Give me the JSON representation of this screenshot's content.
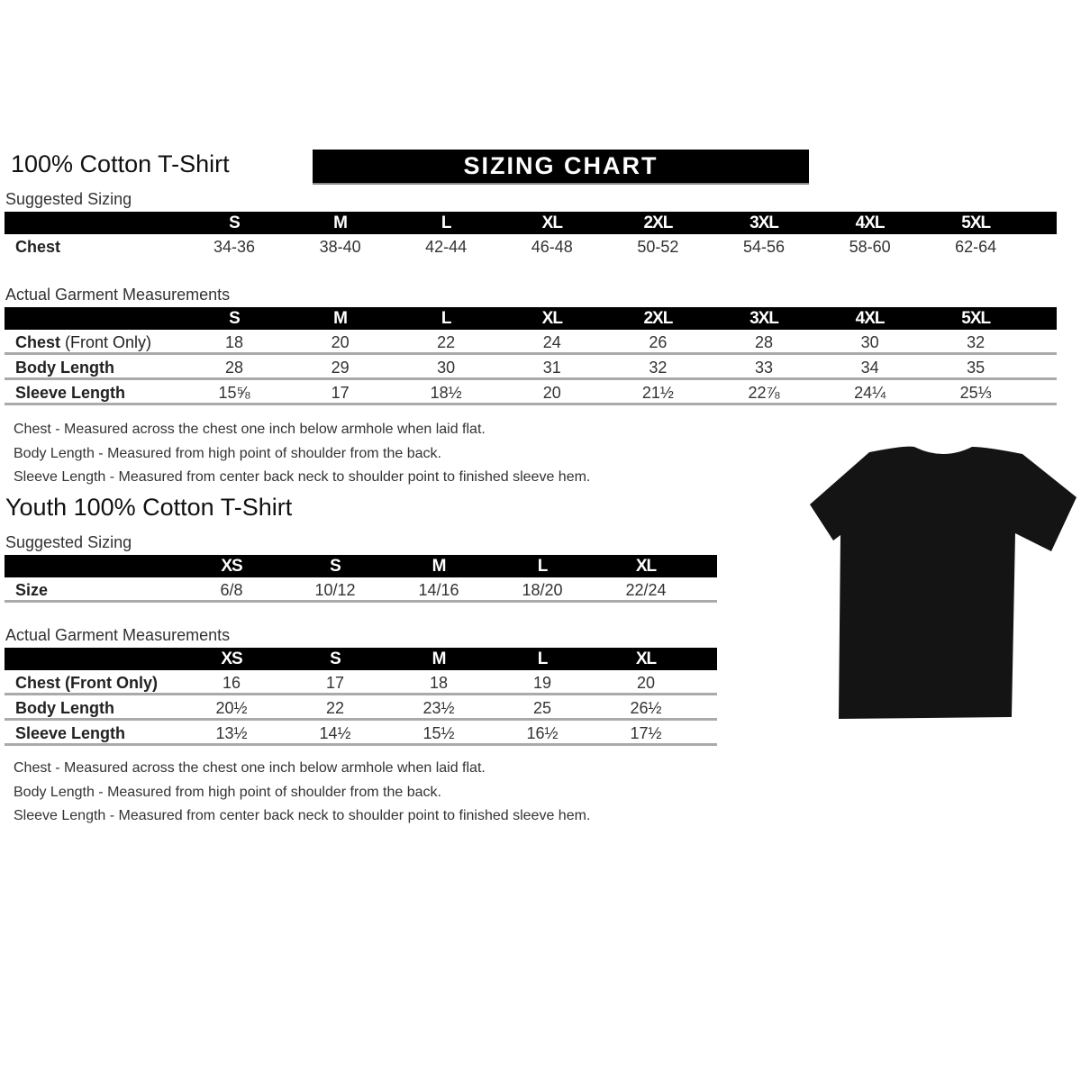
{
  "adult": {
    "title": "100% Cotton T-Shirt",
    "banner": "SIZING CHART",
    "suggested_label": "Suggested Sizing",
    "sizes": [
      "S",
      "M",
      "L",
      "XL",
      "2XL",
      "3XL",
      "4XL",
      "5XL"
    ],
    "suggested_rows": [
      {
        "label": "Chest",
        "values": [
          "34-36",
          "38-40",
          "42-44",
          "46-48",
          "50-52",
          "54-56",
          "58-60",
          "62-64"
        ]
      }
    ],
    "actual_label": "Actual Garment Measurements",
    "actual_rows": [
      {
        "label": "Chest",
        "label_suffix": " (Front Only)",
        "values": [
          "18",
          "20",
          "22",
          "24",
          "26",
          "28",
          "30",
          "32"
        ]
      },
      {
        "label": "Body Length",
        "label_suffix": "",
        "values": [
          "28",
          "29",
          "30",
          "31",
          "32",
          "33",
          "34",
          "35"
        ]
      },
      {
        "label": "Sleeve Length",
        "label_suffix": "",
        "values": [
          "15⅝",
          "17",
          "18½",
          "20",
          "21½",
          "22⅞",
          "24¼",
          "25⅓"
        ]
      }
    ],
    "notes": [
      "Chest - Measured across the chest one inch below armhole when laid flat.",
      "Body Length - Measured from high point of shoulder from the back.",
      "Sleeve Length - Measured from center back neck to shoulder point to finished sleeve hem."
    ]
  },
  "youth": {
    "title": "Youth 100% Cotton T-Shirt",
    "suggested_label": "Suggested Sizing",
    "sizes": [
      "XS",
      "S",
      "M",
      "L",
      "XL"
    ],
    "suggested_rows": [
      {
        "label": "Size",
        "values": [
          "6/8",
          "10/12",
          "14/16",
          "18/20",
          "22/24"
        ]
      }
    ],
    "actual_label": "Actual Garment Measurements",
    "actual_rows": [
      {
        "label": "Chest (Front Only)",
        "values": [
          "16",
          "17",
          "18",
          "19",
          "20"
        ]
      },
      {
        "label": "Body Length",
        "values": [
          "20½",
          "22",
          "23½",
          "25",
          "26½"
        ]
      },
      {
        "label": "Sleeve Length",
        "values": [
          "13½",
          "14½",
          "15½",
          "16½",
          "17½"
        ]
      }
    ],
    "notes": [
      "Chest - Measured across the chest one inch below armhole when laid flat.",
      "Body Length - Measured from high point of shoulder from the back.",
      "Sleeve Length - Measured from center back neck to shoulder point to finished sleeve hem."
    ]
  },
  "tshirt_color": "#141414"
}
